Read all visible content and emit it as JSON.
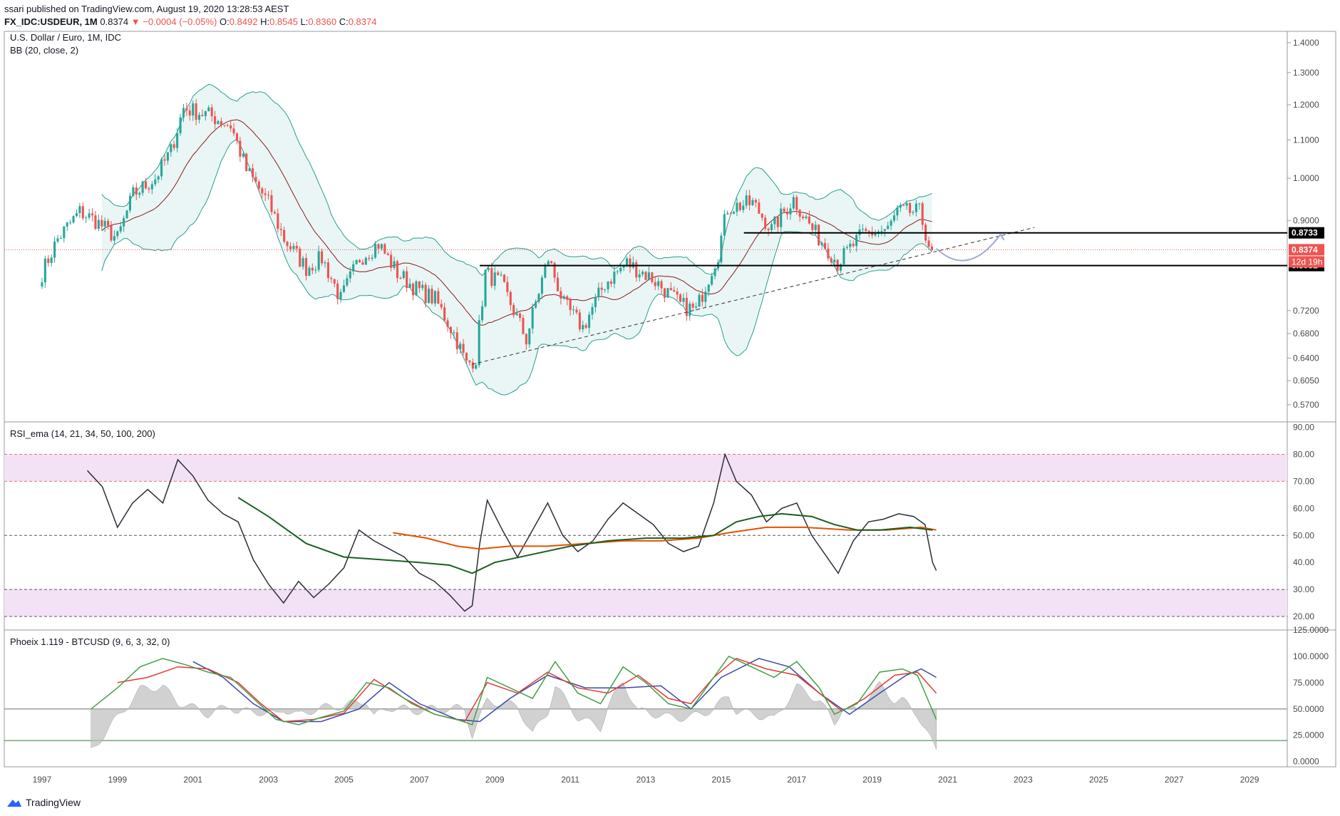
{
  "header": {
    "line1": "ssari published on TradingView.com, August 19, 2020 13:28:53 AEST",
    "symbol": "FX_IDC:USDEUR, 1M",
    "last": "0.8374",
    "change": "▼ −0.0004 (−0.05%)",
    "o_label": "O:",
    "o": "0.8492",
    "h_label": "H:",
    "h": "0.8545",
    "l_label": "L:",
    "l": "0.8360",
    "c_label": "C:",
    "c": "0.8374"
  },
  "footer": {
    "brand": "TradingView"
  },
  "colors": {
    "candle_up": "#26a69a",
    "candle_down": "#ef5350",
    "bb_band": "#2a9d8f",
    "bb_mid": "#8b1a1a",
    "rsi_line": "#2a2e39",
    "rsi_ema_green": "#1b5e20",
    "rsi_ema_orange": "#e65100",
    "rsi_zone": "#f3e1f5",
    "phoenix_green": "#43a047",
    "phoenix_red": "#e53935",
    "phoenix_blue": "#3949ab"
  },
  "chart_data": [
    {
      "type": "candlestick",
      "title": "U.S. Dollar / Euro, 1M, IDC",
      "indicator": "BB (20, close, 2)",
      "ylim": [
        0.55,
        1.43
      ],
      "yticks": [
        "1.4000",
        "1.3000",
        "1.2000",
        "1.1000",
        "1.0000",
        "0.9000",
        "0.7200",
        "0.6800",
        "0.6400",
        "0.6050",
        "0.5700"
      ],
      "y_scale": "log",
      "x_range": [
        "1996-01",
        "2030-01"
      ],
      "xticks": [
        "1997",
        "1999",
        "2001",
        "2003",
        "2005",
        "2007",
        "2009",
        "2011",
        "2013",
        "2015",
        "2017",
        "2019",
        "2021",
        "2023",
        "2025",
        "2027",
        "2029"
      ],
      "close_series": [
        [
          "1997-01",
          0.79
        ],
        [
          "1997-06",
          0.86
        ],
        [
          "1998-01",
          0.92
        ],
        [
          "1998-06",
          0.9
        ],
        [
          "1999-01",
          0.86
        ],
        [
          "1999-06",
          0.96
        ],
        [
          "2000-01",
          1.0
        ],
        [
          "2000-06",
          1.07
        ],
        [
          "2000-10",
          1.19
        ],
        [
          "2001-06",
          1.17
        ],
        [
          "2002-01",
          1.14
        ],
        [
          "2002-06",
          1.02
        ],
        [
          "2003-01",
          0.94
        ],
        [
          "2003-06",
          0.86
        ],
        [
          "2004-01",
          0.8
        ],
        [
          "2004-06",
          0.82
        ],
        [
          "2004-12",
          0.74
        ],
        [
          "2005-06",
          0.82
        ],
        [
          "2005-12",
          0.85
        ],
        [
          "2006-06",
          0.79
        ],
        [
          "2006-12",
          0.76
        ],
        [
          "2007-06",
          0.74
        ],
        [
          "2007-12",
          0.68
        ],
        [
          "2008-04",
          0.63
        ],
        [
          "2008-07",
          0.64
        ],
        [
          "2008-10",
          0.79
        ],
        [
          "2009-03",
          0.77
        ],
        [
          "2009-11",
          0.67
        ],
        [
          "2010-06",
          0.82
        ],
        [
          "2010-11",
          0.73
        ],
        [
          "2011-05",
          0.69
        ],
        [
          "2011-12",
          0.77
        ],
        [
          "2012-07",
          0.81
        ],
        [
          "2013-03",
          0.78
        ],
        [
          "2013-12",
          0.73
        ],
        [
          "2014-05",
          0.72
        ],
        [
          "2014-12",
          0.83
        ],
        [
          "2015-03",
          0.93
        ],
        [
          "2015-11",
          0.94
        ],
        [
          "2016-05",
          0.88
        ],
        [
          "2016-12",
          0.95
        ],
        [
          "2017-06",
          0.88
        ],
        [
          "2017-12",
          0.83
        ],
        [
          "2018-02",
          0.81
        ],
        [
          "2018-10",
          0.87
        ],
        [
          "2019-06",
          0.88
        ],
        [
          "2019-09",
          0.92
        ],
        [
          "2020-02",
          0.92
        ],
        [
          "2020-04",
          0.92
        ],
        [
          "2020-07",
          0.85
        ],
        [
          "2020-08",
          0.8374
        ]
      ],
      "last_price": 0.8374,
      "price_lines": [
        {
          "label": "0.8733",
          "value": 0.8733
        },
        {
          "label": "0.8051",
          "value": 0.8051
        }
      ],
      "countdown_label": "12d 19h"
    },
    {
      "type": "line",
      "title": "RSI_ema (14, 21, 34, 50, 100, 200)",
      "ylim": [
        15,
        92
      ],
      "yticks": [
        "90.00",
        "80.00",
        "70.00",
        "60.00",
        "50.00",
        "40.00",
        "30.00",
        "20.00"
      ],
      "levels": [
        80,
        70,
        50,
        30,
        20
      ],
      "rsi": [
        [
          1998.2,
          74
        ],
        [
          1998.6,
          68
        ],
        [
          1999.0,
          53
        ],
        [
          1999.4,
          62
        ],
        [
          1999.8,
          67
        ],
        [
          2000.2,
          62
        ],
        [
          2000.6,
          78
        ],
        [
          2001.0,
          72
        ],
        [
          2001.4,
          63
        ],
        [
          2001.8,
          58
        ],
        [
          2002.2,
          55
        ],
        [
          2002.6,
          41
        ],
        [
          2003.0,
          32
        ],
        [
          2003.4,
          25
        ],
        [
          2003.8,
          33
        ],
        [
          2004.2,
          27
        ],
        [
          2004.6,
          32
        ],
        [
          2005.0,
          38
        ],
        [
          2005.4,
          52
        ],
        [
          2005.8,
          48
        ],
        [
          2006.2,
          45
        ],
        [
          2006.6,
          42
        ],
        [
          2007.0,
          36
        ],
        [
          2007.4,
          33
        ],
        [
          2007.8,
          28
        ],
        [
          2008.2,
          22
        ],
        [
          2008.4,
          24
        ],
        [
          2008.6,
          47
        ],
        [
          2008.8,
          63
        ],
        [
          2009.2,
          52
        ],
        [
          2009.6,
          42
        ],
        [
          2010.0,
          52
        ],
        [
          2010.4,
          62
        ],
        [
          2010.8,
          50
        ],
        [
          2011.2,
          44
        ],
        [
          2011.6,
          48
        ],
        [
          2012.0,
          56
        ],
        [
          2012.4,
          62
        ],
        [
          2012.8,
          58
        ],
        [
          2013.2,
          54
        ],
        [
          2013.6,
          47
        ],
        [
          2014.0,
          44
        ],
        [
          2014.4,
          46
        ],
        [
          2014.8,
          62
        ],
        [
          2015.1,
          80
        ],
        [
          2015.4,
          70
        ],
        [
          2015.8,
          65
        ],
        [
          2016.2,
          55
        ],
        [
          2016.6,
          60
        ],
        [
          2017.0,
          62
        ],
        [
          2017.4,
          50
        ],
        [
          2017.8,
          42
        ],
        [
          2018.1,
          36
        ],
        [
          2018.5,
          48
        ],
        [
          2018.9,
          55
        ],
        [
          2019.3,
          56
        ],
        [
          2019.7,
          58
        ],
        [
          2020.1,
          57
        ],
        [
          2020.4,
          54
        ],
        [
          2020.6,
          40
        ],
        [
          2020.7,
          37
        ]
      ],
      "ema_green": [
        [
          2002.2,
          64
        ],
        [
          2003.0,
          57
        ],
        [
          2004.0,
          47
        ],
        [
          2005.0,
          42
        ],
        [
          2006.0,
          41
        ],
        [
          2007.0,
          40
        ],
        [
          2007.8,
          39
        ],
        [
          2008.4,
          36
        ],
        [
          2009.0,
          40
        ],
        [
          2010.0,
          43
        ],
        [
          2011.0,
          46
        ],
        [
          2012.0,
          48
        ],
        [
          2013.0,
          49
        ],
        [
          2014.0,
          49
        ],
        [
          2014.8,
          50
        ],
        [
          2015.4,
          55
        ],
        [
          2016.0,
          57
        ],
        [
          2016.6,
          58
        ],
        [
          2017.4,
          57
        ],
        [
          2018.0,
          54
        ],
        [
          2018.6,
          52
        ],
        [
          2019.2,
          52
        ],
        [
          2020.0,
          53
        ],
        [
          2020.6,
          52
        ]
      ],
      "ema_orange": [
        [
          2006.3,
          51
        ],
        [
          2007.2,
          49
        ],
        [
          2008.0,
          46
        ],
        [
          2008.6,
          45
        ],
        [
          2009.4,
          46
        ],
        [
          2010.4,
          46
        ],
        [
          2011.4,
          47
        ],
        [
          2012.4,
          48
        ],
        [
          2013.4,
          48
        ],
        [
          2014.4,
          49
        ],
        [
          2015.2,
          51
        ],
        [
          2016.2,
          53
        ],
        [
          2017.2,
          53
        ],
        [
          2018.4,
          52
        ],
        [
          2019.4,
          52
        ],
        [
          2020.3,
          53
        ],
        [
          2020.7,
          52
        ]
      ]
    },
    {
      "type": "line",
      "title": "Phoeix 1.119 - BTCUSD (9, 6, 3, 32, 0)",
      "ylim": [
        -5,
        125
      ],
      "yticks": [
        "125.0000",
        "100.0000",
        "75.0000",
        "50.0000",
        "25.0000",
        "0.0000"
      ],
      "levels": [
        50,
        20
      ],
      "green": [
        [
          1998.3,
          50
        ],
        [
          1999.0,
          70
        ],
        [
          1999.6,
          90
        ],
        [
          2000.2,
          98
        ],
        [
          2000.8,
          92
        ],
        [
          2001.4,
          85
        ],
        [
          2002.0,
          80
        ],
        [
          2002.6,
          60
        ],
        [
          2003.2,
          40
        ],
        [
          2003.8,
          35
        ],
        [
          2004.4,
          42
        ],
        [
          2005.0,
          48
        ],
        [
          2005.6,
          75
        ],
        [
          2006.2,
          70
        ],
        [
          2006.8,
          55
        ],
        [
          2007.4,
          45
        ],
        [
          2008.0,
          40
        ],
        [
          2008.4,
          35
        ],
        [
          2008.8,
          80
        ],
        [
          2009.4,
          70
        ],
        [
          2010.0,
          60
        ],
        [
          2010.6,
          95
        ],
        [
          2011.2,
          65
        ],
        [
          2011.8,
          55
        ],
        [
          2012.4,
          90
        ],
        [
          2013.0,
          75
        ],
        [
          2013.6,
          55
        ],
        [
          2014.2,
          50
        ],
        [
          2014.8,
          80
        ],
        [
          2015.2,
          100
        ],
        [
          2015.8,
          90
        ],
        [
          2016.4,
          80
        ],
        [
          2017.0,
          95
        ],
        [
          2017.6,
          70
        ],
        [
          2018.0,
          45
        ],
        [
          2018.6,
          55
        ],
        [
          2019.2,
          85
        ],
        [
          2019.8,
          88
        ],
        [
          2020.2,
          82
        ],
        [
          2020.7,
          40
        ]
      ],
      "red": [
        [
          1999.0,
          75
        ],
        [
          1999.8,
          80
        ],
        [
          2000.6,
          90
        ],
        [
          2001.4,
          88
        ],
        [
          2002.2,
          75
        ],
        [
          2002.8,
          55
        ],
        [
          2003.4,
          38
        ],
        [
          2004.2,
          40
        ],
        [
          2005.0,
          46
        ],
        [
          2005.8,
          78
        ],
        [
          2006.6,
          60
        ],
        [
          2007.4,
          45
        ],
        [
          2008.2,
          38
        ],
        [
          2008.8,
          75
        ],
        [
          2009.6,
          65
        ],
        [
          2010.4,
          85
        ],
        [
          2011.2,
          70
        ],
        [
          2012.0,
          65
        ],
        [
          2012.8,
          82
        ],
        [
          2013.6,
          60
        ],
        [
          2014.2,
          55
        ],
        [
          2014.8,
          80
        ],
        [
          2015.4,
          98
        ],
        [
          2016.2,
          88
        ],
        [
          2017.0,
          82
        ],
        [
          2017.6,
          65
        ],
        [
          2018.2,
          48
        ],
        [
          2018.8,
          60
        ],
        [
          2019.6,
          82
        ],
        [
          2020.2,
          85
        ],
        [
          2020.7,
          65
        ]
      ],
      "blue": [
        [
          2001.0,
          95
        ],
        [
          2001.8,
          80
        ],
        [
          2002.6,
          55
        ],
        [
          2003.4,
          38
        ],
        [
          2004.4,
          38
        ],
        [
          2005.4,
          50
        ],
        [
          2006.2,
          75
        ],
        [
          2007.0,
          55
        ],
        [
          2008.0,
          40
        ],
        [
          2008.6,
          38
        ],
        [
          2009.4,
          60
        ],
        [
          2010.4,
          82
        ],
        [
          2011.4,
          70
        ],
        [
          2012.4,
          70
        ],
        [
          2013.4,
          72
        ],
        [
          2014.2,
          50
        ],
        [
          2015.0,
          80
        ],
        [
          2016.0,
          98
        ],
        [
          2016.8,
          90
        ],
        [
          2017.6,
          65
        ],
        [
          2018.4,
          45
        ],
        [
          2019.2,
          65
        ],
        [
          2019.9,
          82
        ],
        [
          2020.3,
          88
        ],
        [
          2020.7,
          80
        ]
      ]
    }
  ]
}
